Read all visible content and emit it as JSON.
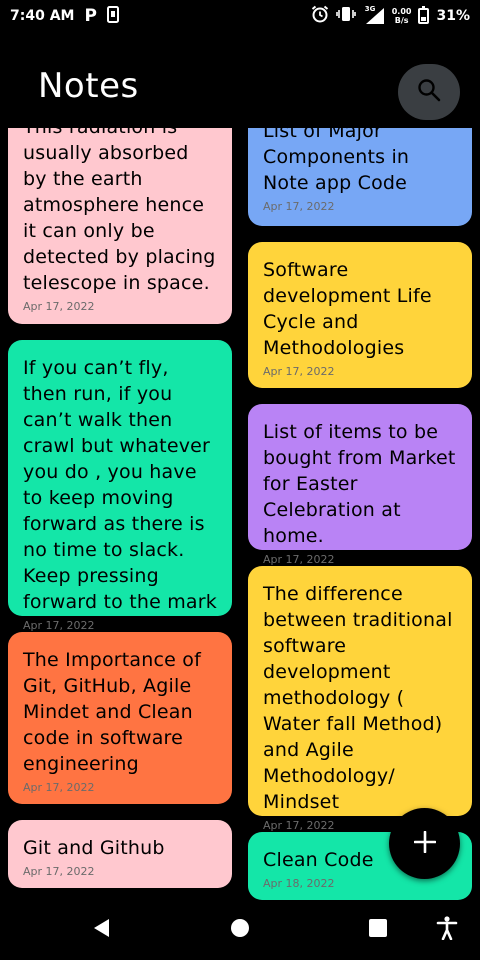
{
  "status_bar": {
    "time": "7:40 AM",
    "net_speed_value": "0.00",
    "net_speed_unit": "B/s",
    "network_type": "3G",
    "battery": "31%"
  },
  "header": {
    "title": "Notes"
  },
  "notes_left": [
    {
      "text": "This radiation is usually absorbed by the earth atmosphere hence it can only be detected by placing telescope in space.",
      "date": "Apr 17, 2022",
      "color": "#ffc8cf"
    },
    {
      "text": "If you can’t fly, then run, if you can’t walk then crawl but whatever you do , you have to keep moving forward as there is no time to slack. Keep pressing forward to the mark",
      "date": "Apr 17, 2022",
      "color": "#14e6a8"
    },
    {
      "text": "The Importance of Git, GitHub, Agile Mindet and Clean code in software engineering",
      "date": "Apr 17, 2022",
      "color": "#ff7442"
    },
    {
      "text": "Git and Github",
      "date": "Apr 17, 2022",
      "color": "#ffc8cf"
    }
  ],
  "notes_right": [
    {
      "text": "List of Major Components in Note app Code",
      "date": "Apr 17, 2022",
      "color": "#77a7f5"
    },
    {
      "text": "Software development Life Cycle and Methodologies",
      "date": "Apr 17, 2022",
      "color": "#ffd43b"
    },
    {
      "text": "List of items to be bought from Market for Easter Celebration at home.",
      "date": "Apr 17, 2022",
      "color": "#b983f5"
    },
    {
      "text": "The difference between traditional software development methodology ( Water fall Method) and Agile Methodology/ Mindset",
      "date": "Apr 17, 2022",
      "color": "#ffd43b"
    },
    {
      "text": "Clean Code",
      "date": "Apr 18, 2022",
      "color": "#14e6a8"
    }
  ],
  "icons": {
    "search": "search-icon",
    "add": "plus-icon",
    "back": "nav-back-icon",
    "home": "nav-home-icon",
    "recents": "nav-recents-icon",
    "accessibility": "accessibility-icon"
  }
}
